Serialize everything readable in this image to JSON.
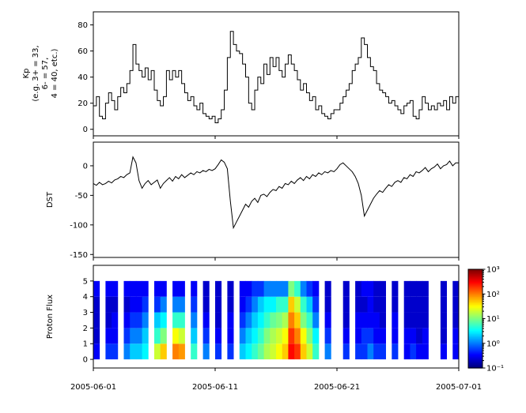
{
  "figure": {
    "background": "#ffffff",
    "line_color": "#000000",
    "x_axis": {
      "range_days": [
        0,
        30
      ],
      "tick_days": [
        0,
        10,
        20,
        30
      ],
      "tick_labels": [
        "2005-06-01",
        "2005-06-11",
        "2005-06-21",
        "2005-07-01"
      ]
    }
  },
  "chart_data": [
    {
      "type": "line",
      "name": "kp-index",
      "line_style": "step",
      "color": "#000000",
      "ylabel": "Kp\n(e.g. 3+ = 33,\n6- = 57,\n4 = 40, etc.)",
      "ylim": [
        -5,
        90
      ],
      "yticks": [
        0,
        20,
        40,
        60,
        80
      ],
      "x_start_day": 0,
      "x_step_days": 0.25,
      "values": [
        18,
        25,
        10,
        8,
        20,
        28,
        22,
        15,
        25,
        32,
        28,
        35,
        45,
        65,
        50,
        45,
        40,
        47,
        38,
        45,
        30,
        22,
        18,
        25,
        45,
        38,
        45,
        40,
        45,
        35,
        28,
        22,
        25,
        18,
        15,
        20,
        12,
        10,
        8,
        10,
        5,
        8,
        15,
        30,
        55,
        75,
        65,
        60,
        58,
        50,
        40,
        20,
        15,
        30,
        40,
        35,
        50,
        42,
        55,
        48,
        55,
        45,
        40,
        50,
        57,
        50,
        45,
        38,
        30,
        35,
        28,
        22,
        25,
        15,
        18,
        12,
        10,
        8,
        12,
        15,
        15,
        20,
        25,
        30,
        35,
        45,
        50,
        55,
        70,
        65,
        55,
        48,
        45,
        35,
        30,
        28,
        25,
        20,
        22,
        18,
        15,
        12,
        18,
        20,
        22,
        10,
        8,
        15,
        25,
        20,
        15,
        18,
        15,
        20,
        18,
        22,
        15,
        25,
        20,
        25
      ]
    },
    {
      "type": "line",
      "name": "dst-index",
      "line_style": "linear",
      "color": "#000000",
      "ylabel": "DST",
      "ylim": [
        -155,
        40
      ],
      "yticks": [
        0,
        -50,
        -100,
        -150
      ],
      "x_start_day": 0,
      "x_step_days": 0.25,
      "values": [
        -30,
        -33,
        -28,
        -32,
        -30,
        -26,
        -29,
        -24,
        -22,
        -18,
        -20,
        -15,
        -12,
        15,
        5,
        -25,
        -38,
        -30,
        -25,
        -32,
        -28,
        -24,
        -38,
        -30,
        -25,
        -20,
        -26,
        -18,
        -22,
        -15,
        -20,
        -16,
        -12,
        -15,
        -10,
        -12,
        -8,
        -10,
        -6,
        -8,
        -5,
        2,
        10,
        6,
        -5,
        -60,
        -105,
        -95,
        -85,
        -75,
        -65,
        -70,
        -60,
        -55,
        -62,
        -50,
        -48,
        -52,
        -45,
        -40,
        -42,
        -35,
        -38,
        -30,
        -32,
        -26,
        -30,
        -24,
        -20,
        -25,
        -18,
        -22,
        -15,
        -18,
        -12,
        -15,
        -10,
        -12,
        -8,
        -10,
        -5,
        2,
        5,
        0,
        -5,
        -10,
        -18,
        -30,
        -50,
        -85,
        -75,
        -65,
        -55,
        -48,
        -42,
        -45,
        -38,
        -32,
        -35,
        -28,
        -25,
        -28,
        -20,
        -22,
        -15,
        -18,
        -10,
        -12,
        -8,
        -3,
        -10,
        -5,
        -2,
        3,
        -5,
        0,
        2,
        8,
        0,
        5
      ]
    },
    {
      "type": "heatmap",
      "name": "proton-flux",
      "ylabel": "Proton Flux",
      "ylim": [
        -0.55,
        6
      ],
      "yticks": [
        0,
        1,
        2,
        3,
        4,
        5
      ],
      "colormap": "jet",
      "color_scale": "log",
      "clim": [
        0.1,
        1000
      ],
      "colorbar_ticks": [
        {
          "label": "10³",
          "value": 1000
        },
        {
          "label": "10²",
          "value": 100
        },
        {
          "label": "10¹",
          "value": 10
        },
        {
          "label": "10⁰",
          "value": 1
        },
        {
          "label": "10⁻¹",
          "value": 0.1
        }
      ],
      "x_step_days": 0.5,
      "rows": 5,
      "columns": [
        [
          0.3,
          0.2,
          0.2,
          0.2,
          0.3
        ],
        null,
        [
          0.5,
          0.3,
          0.2,
          0.2,
          0.3
        ],
        [
          0.5,
          0.3,
          0.3,
          0.2,
          0.3
        ],
        null,
        [
          1,
          0.5,
          0.3,
          0.2,
          0.3
        ],
        [
          2,
          1,
          0.5,
          0.3,
          0.3
        ],
        [
          2,
          1,
          0.5,
          0.3,
          0.3
        ],
        [
          3,
          2,
          1,
          0.5,
          0.3
        ],
        null,
        [
          20,
          5,
          2,
          0.5,
          0.3
        ],
        [
          50,
          10,
          3,
          1,
          0.3
        ],
        null,
        [
          100,
          30,
          5,
          1,
          0.3
        ],
        [
          80,
          20,
          5,
          1,
          0.3
        ],
        null,
        [
          5,
          2,
          1,
          0.5,
          0.3
        ],
        null,
        [
          1,
          0.5,
          0.3,
          0.2,
          0.2
        ],
        null,
        [
          0.5,
          0.3,
          0.2,
          0.2,
          0.2
        ],
        null,
        [
          0.5,
          0.3,
          0.3,
          0.2,
          0.2
        ],
        null,
        [
          2,
          1,
          0.5,
          0.3,
          0.3
        ],
        [
          3,
          2,
          1,
          0.5,
          0.3
        ],
        [
          5,
          3,
          2,
          1,
          0.5
        ],
        [
          8,
          5,
          3,
          2,
          0.5
        ],
        [
          15,
          10,
          5,
          3,
          1
        ],
        [
          20,
          15,
          8,
          3,
          1
        ],
        [
          30,
          20,
          10,
          5,
          1
        ],
        [
          50,
          30,
          15,
          5,
          1
        ],
        [
          300,
          200,
          100,
          50,
          10
        ],
        [
          200,
          100,
          50,
          20,
          5
        ],
        [
          50,
          30,
          10,
          5,
          1
        ],
        [
          20,
          10,
          5,
          2,
          0.5
        ],
        [
          5,
          3,
          1,
          0.5,
          0.3
        ],
        null,
        [
          1,
          0.5,
          0.3,
          0.2,
          0.2
        ],
        null,
        null,
        [
          0.5,
          0.3,
          0.2,
          0.2,
          0.2
        ],
        null,
        [
          0.5,
          0.3,
          0.3,
          0.2,
          0.2
        ],
        [
          0.5,
          0.5,
          0.3,
          0.2,
          0.3
        ],
        [
          1,
          0.5,
          0.3,
          0.3,
          0.3
        ],
        [
          0.5,
          0.3,
          0.3,
          0.2,
          0.2
        ],
        [
          0.5,
          0.3,
          0.2,
          0.2,
          0.2
        ],
        null,
        [
          0.5,
          0.3,
          0.3,
          0.2,
          0.2
        ],
        null,
        [
          0.3,
          0.3,
          0.2,
          0.2,
          0.2
        ],
        [
          0.5,
          0.3,
          0.2,
          0.2,
          0.2
        ],
        [
          0.3,
          0.2,
          0.2,
          0.2,
          0.2
        ],
        [
          0.3,
          0.3,
          0.2,
          0.2,
          0.2
        ],
        null,
        null,
        [
          0.3,
          0.2,
          0.2,
          0.2,
          0.2
        ],
        null,
        [
          0.3,
          0.3,
          0.2,
          0.2,
          0.2
        ]
      ]
    }
  ]
}
